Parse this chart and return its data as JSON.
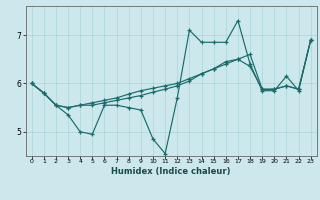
{
  "xlabel": "Humidex (Indice chaleur)",
  "xlim": [
    -0.5,
    23.5
  ],
  "ylim": [
    4.5,
    7.6
  ],
  "yticks": [
    5,
    6,
    7
  ],
  "xticks": [
    0,
    1,
    2,
    3,
    4,
    5,
    6,
    7,
    8,
    9,
    10,
    11,
    12,
    13,
    14,
    15,
    16,
    17,
    18,
    19,
    20,
    21,
    22,
    23
  ],
  "bg_color": "#cce8ec",
  "line_color": "#1a6b6b",
  "grid_color": "#aad4d8",
  "series": [
    [
      6.0,
      5.8,
      5.55,
      5.35,
      5.0,
      4.95,
      5.55,
      5.55,
      5.5,
      5.45,
      4.85,
      4.55,
      5.7,
      7.1,
      6.85,
      6.85,
      6.85,
      7.3,
      6.4,
      5.85,
      5.85,
      6.15,
      5.85,
      6.9
    ],
    [
      6.0,
      5.8,
      5.55,
      5.5,
      5.55,
      5.55,
      5.6,
      5.65,
      5.7,
      5.75,
      5.82,
      5.88,
      5.95,
      6.05,
      6.2,
      6.3,
      6.45,
      6.5,
      6.35,
      5.88,
      5.88,
      5.95,
      5.88,
      6.9
    ],
    [
      6.0,
      5.8,
      5.55,
      5.5,
      5.55,
      5.6,
      5.65,
      5.7,
      5.78,
      5.85,
      5.9,
      5.95,
      6.0,
      6.1,
      6.2,
      6.3,
      6.4,
      6.5,
      6.6,
      5.88,
      5.88,
      5.95,
      5.88,
      6.9
    ]
  ]
}
